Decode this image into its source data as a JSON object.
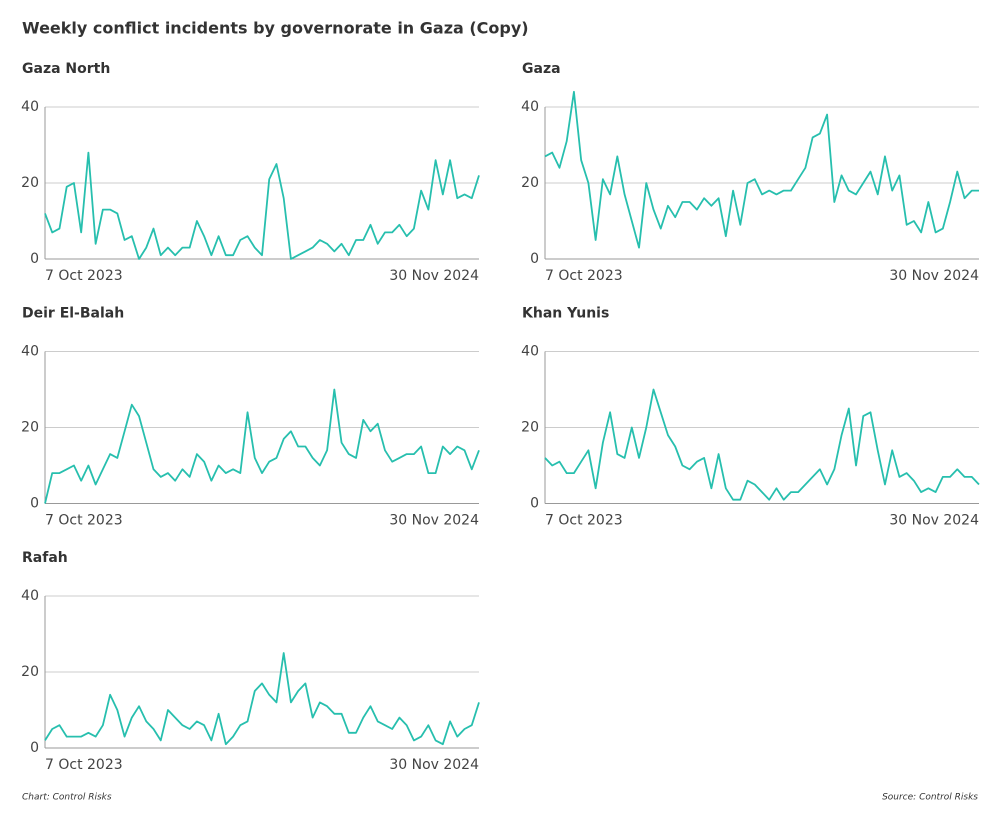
{
  "title": "Weekly conflict incidents by governorate in Gaza (Copy)",
  "footer": {
    "credit": "Chart: Control Risks",
    "source": "Source: Control Risks"
  },
  "chart_data": [
    {
      "type": "line",
      "title": "Gaza North",
      "categories": [
        "7 Oct 2023",
        null,
        null,
        null,
        null,
        null,
        null,
        null,
        null,
        null,
        null,
        null,
        null,
        null,
        null,
        null,
        null,
        null,
        null,
        null,
        null,
        null,
        null,
        null,
        null,
        null,
        null,
        null,
        null,
        null,
        null,
        null,
        null,
        null,
        null,
        null,
        null,
        null,
        null,
        null,
        null,
        null,
        null,
        null,
        null,
        null,
        null,
        null,
        null,
        null,
        null,
        null,
        null,
        null,
        null,
        null,
        null,
        null,
        null,
        null,
        "30 Nov 2024"
      ],
      "color": "#27bfae",
      "ylim": [
        0,
        40
      ],
      "yticks": [
        0,
        20,
        40
      ],
      "grid": true,
      "values": [
        12,
        7,
        8,
        19,
        20,
        7,
        28,
        4,
        13,
        13,
        12,
        5,
        6,
        0,
        3,
        8,
        1,
        3,
        1,
        3,
        3,
        10,
        6,
        1,
        6,
        1,
        1,
        5,
        6,
        3,
        1,
        21,
        25,
        16,
        0,
        1,
        2,
        3,
        5,
        4,
        2,
        4,
        1,
        5,
        5,
        9,
        4,
        7,
        7,
        9,
        6,
        8,
        18,
        13,
        26,
        17,
        26,
        16,
        17,
        16,
        22
      ]
    },
    {
      "type": "line",
      "title": "Gaza",
      "categories": [
        "7 Oct 2023",
        null,
        null,
        null,
        null,
        null,
        null,
        null,
        null,
        null,
        null,
        null,
        null,
        null,
        null,
        null,
        null,
        null,
        null,
        null,
        null,
        null,
        null,
        null,
        null,
        null,
        null,
        null,
        null,
        null,
        null,
        null,
        null,
        null,
        null,
        null,
        null,
        null,
        null,
        null,
        null,
        null,
        null,
        null,
        null,
        null,
        null,
        null,
        null,
        null,
        null,
        null,
        null,
        null,
        null,
        null,
        null,
        null,
        null,
        null,
        "30 Nov 2024"
      ],
      "color": "#27bfae",
      "ylim": [
        0,
        40
      ],
      "yticks": [
        0,
        20,
        40
      ],
      "grid": true,
      "values": [
        27,
        28,
        24,
        31,
        44,
        26,
        20,
        5,
        21,
        17,
        27,
        17,
        10,
        3,
        20,
        13,
        8,
        14,
        11,
        15,
        15,
        13,
        16,
        14,
        16,
        6,
        18,
        9,
        20,
        21,
        17,
        18,
        17,
        18,
        18,
        21,
        24,
        32,
        33,
        38,
        15,
        22,
        18,
        17,
        20,
        23,
        17,
        27,
        18,
        22,
        9,
        10,
        7,
        15,
        7,
        8,
        15,
        23,
        16,
        18,
        18
      ]
    },
    {
      "type": "line",
      "title": "Deir El-Balah",
      "categories": [
        "7 Oct 2023",
        null,
        null,
        null,
        null,
        null,
        null,
        null,
        null,
        null,
        null,
        null,
        null,
        null,
        null,
        null,
        null,
        null,
        null,
        null,
        null,
        null,
        null,
        null,
        null,
        null,
        null,
        null,
        null,
        null,
        null,
        null,
        null,
        null,
        null,
        null,
        null,
        null,
        null,
        null,
        null,
        null,
        null,
        null,
        null,
        null,
        null,
        null,
        null,
        null,
        null,
        null,
        null,
        null,
        null,
        null,
        null,
        null,
        null,
        null,
        "30 Nov 2024"
      ],
      "color": "#27bfae",
      "ylim": [
        0,
        40
      ],
      "yticks": [
        0,
        20,
        40
      ],
      "grid": true,
      "values": [
        0,
        8,
        8,
        9,
        10,
        6,
        10,
        5,
        9,
        13,
        12,
        19,
        26,
        23,
        16,
        9,
        7,
        8,
        6,
        9,
        7,
        13,
        11,
        6,
        10,
        8,
        9,
        8,
        24,
        12,
        8,
        11,
        12,
        17,
        19,
        15,
        15,
        12,
        10,
        14,
        30,
        16,
        13,
        12,
        22,
        19,
        21,
        14,
        11,
        12,
        13,
        13,
        15,
        8,
        8,
        15,
        13,
        15,
        14,
        9,
        14
      ]
    },
    {
      "type": "line",
      "title": "Khan Yunis",
      "categories": [
        "7 Oct 2023",
        null,
        null,
        null,
        null,
        null,
        null,
        null,
        null,
        null,
        null,
        null,
        null,
        null,
        null,
        null,
        null,
        null,
        null,
        null,
        null,
        null,
        null,
        null,
        null,
        null,
        null,
        null,
        null,
        null,
        null,
        null,
        null,
        null,
        null,
        null,
        null,
        null,
        null,
        null,
        null,
        null,
        null,
        null,
        null,
        null,
        null,
        null,
        null,
        null,
        null,
        null,
        null,
        null,
        null,
        null,
        null,
        null,
        null,
        null,
        "30 Nov 2024"
      ],
      "color": "#27bfae",
      "ylim": [
        0,
        40
      ],
      "yticks": [
        0,
        20,
        40
      ],
      "grid": true,
      "values": [
        12,
        10,
        11,
        8,
        8,
        11,
        14,
        4,
        16,
        24,
        13,
        12,
        20,
        12,
        20,
        30,
        24,
        18,
        15,
        10,
        9,
        11,
        12,
        4,
        13,
        4,
        1,
        1,
        6,
        5,
        3,
        1,
        4,
        1,
        3,
        3,
        5,
        7,
        9,
        5,
        9,
        18,
        25,
        10,
        23,
        24,
        14,
        5,
        14,
        7,
        8,
        6,
        3,
        4,
        3,
        7,
        7,
        9,
        7,
        7,
        5
      ]
    },
    {
      "type": "line",
      "title": "Rafah",
      "categories": [
        "7 Oct 2023",
        null,
        null,
        null,
        null,
        null,
        null,
        null,
        null,
        null,
        null,
        null,
        null,
        null,
        null,
        null,
        null,
        null,
        null,
        null,
        null,
        null,
        null,
        null,
        null,
        null,
        null,
        null,
        null,
        null,
        null,
        null,
        null,
        null,
        null,
        null,
        null,
        null,
        null,
        null,
        null,
        null,
        null,
        null,
        null,
        null,
        null,
        null,
        null,
        null,
        null,
        null,
        null,
        null,
        null,
        null,
        null,
        null,
        null,
        null,
        "30 Nov 2024"
      ],
      "color": "#27bfae",
      "ylim": [
        0,
        40
      ],
      "yticks": [
        0,
        20,
        40
      ],
      "grid": true,
      "values": [
        2,
        5,
        6,
        3,
        3,
        3,
        4,
        3,
        6,
        14,
        10,
        3,
        8,
        11,
        7,
        5,
        2,
        10,
        8,
        6,
        5,
        7,
        6,
        2,
        9,
        1,
        3,
        6,
        7,
        15,
        17,
        14,
        12,
        25,
        12,
        15,
        17,
        8,
        12,
        11,
        9,
        9,
        4,
        4,
        8,
        11,
        7,
        6,
        5,
        8,
        6,
        2,
        3,
        6,
        2,
        1,
        7,
        3,
        5,
        6,
        12
      ]
    }
  ]
}
